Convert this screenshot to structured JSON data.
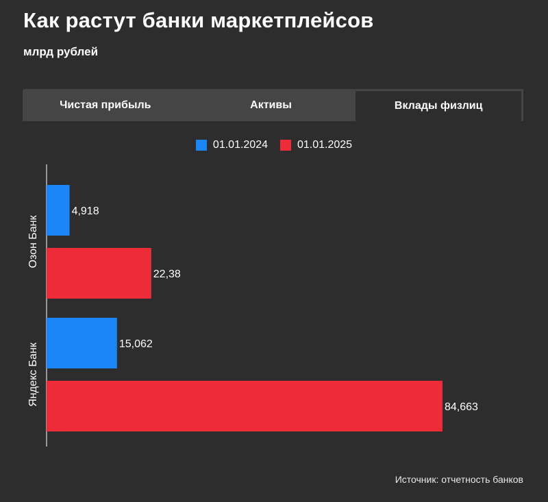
{
  "title": "Как растут банки маркетплейсов",
  "subtitle": "млрд рублей",
  "tabs": [
    {
      "label": "Чистая прибыль",
      "active": false
    },
    {
      "label": "Активы",
      "active": false
    },
    {
      "label": "Вклады физлиц",
      "active": true
    }
  ],
  "source": "Источник: отчетность банков",
  "colors": {
    "blue": "#1a86f5",
    "red": "#ee2b39",
    "background": "#2d2d2d",
    "tab_bg": "#454545"
  },
  "chart_data": {
    "type": "bar",
    "orientation": "horizontal",
    "categories": [
      "Озон Банк",
      "Яндекс Банк"
    ],
    "series": [
      {
        "name": "01.01.2024",
        "color": "#1a86f5",
        "values": [
          4.918,
          15.062
        ],
        "labels": [
          "4,918",
          "15,062"
        ]
      },
      {
        "name": "01.01.2025",
        "color": "#ee2b39",
        "values": [
          22.38,
          84.663
        ],
        "labels": [
          "22,38",
          "84,663"
        ]
      }
    ],
    "legend_position": "top-center",
    "grid": false
  }
}
